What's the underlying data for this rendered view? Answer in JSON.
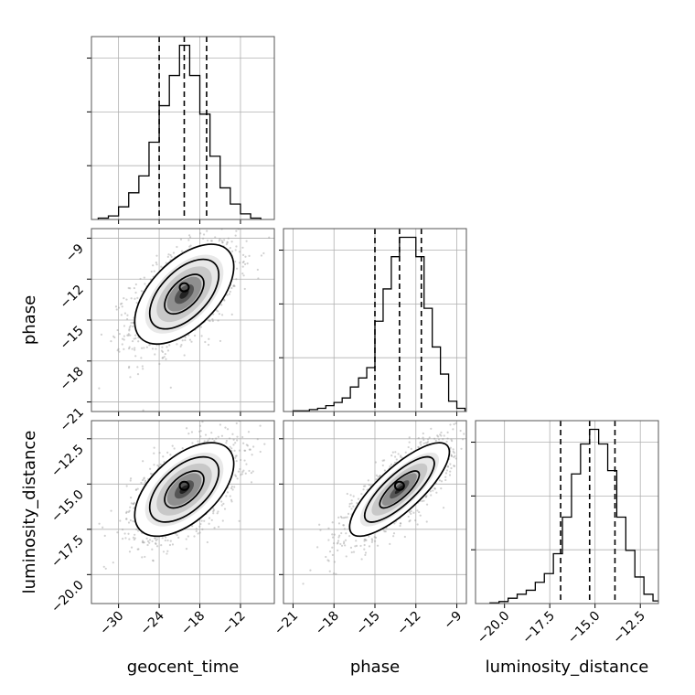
{
  "chart_data": {
    "type": "corner",
    "parameters": [
      "geocent_time",
      "phase",
      "luminosity_distance"
    ],
    "grid": true,
    "axes_ranges": {
      "geocent_time": [
        -34,
        -7
      ],
      "phase": [
        -21.7,
        -8.3
      ],
      "luminosity_distance": [
        -21.6,
        -11.5
      ]
    },
    "ticks": {
      "geocent_time": {
        "values": [
          -30,
          -24,
          -18,
          -12
        ],
        "labels": [
          "−30",
          "−24",
          "−18",
          "−12"
        ]
      },
      "phase": {
        "values": [
          -21,
          -18,
          -15,
          -12,
          -9
        ],
        "labels": [
          "−21",
          "−18",
          "−15",
          "−12",
          "−9"
        ]
      },
      "luminosity_distance": {
        "values": [
          -20.0,
          -17.5,
          -15.0,
          -12.5
        ],
        "labels": [
          "−20.0",
          "−17.5",
          "−15.0",
          "−12.5"
        ]
      }
    },
    "marginals": [
      {
        "parameter": "geocent_time",
        "quantiles": [
          -24.0,
          -20.3,
          -17.0
        ],
        "bins": [
          -33,
          -31.5,
          -30,
          -28.5,
          -27,
          -25.5,
          -24,
          -22.5,
          -21,
          -19.5,
          -18,
          -16.5,
          -15,
          -13.5,
          -12,
          -10.5,
          -9
        ],
        "counts": [
          2,
          5,
          18,
          38,
          62,
          110,
          162,
          205,
          248,
          205,
          150,
          90,
          45,
          22,
          8,
          2
        ]
      },
      {
        "parameter": "phase",
        "quantiles": [
          -15.0,
          -13.2,
          -11.6
        ],
        "bins": [
          -21,
          -20.4,
          -19.8,
          -19.2,
          -18.6,
          -18.0,
          -17.4,
          -16.8,
          -16.2,
          -15.6,
          -15.0,
          -14.4,
          -13.8,
          -13.2,
          -12.6,
          -12.0,
          -11.4,
          -10.8,
          -10.2,
          -9.6,
          -9.0,
          -8.4
        ],
        "counts": [
          1,
          1,
          3,
          5,
          9,
          14,
          21,
          38,
          52,
          68,
          140,
          190,
          240,
          270,
          270,
          240,
          160,
          100,
          58,
          16,
          5
        ]
      },
      {
        "parameter": "luminosity_distance",
        "quantiles": [
          -16.9,
          -15.3,
          -13.9
        ],
        "bins": [
          -20.8,
          -20.3,
          -19.8,
          -19.3,
          -18.8,
          -18.3,
          -17.8,
          -17.3,
          -16.8,
          -16.3,
          -15.8,
          -15.3,
          -14.8,
          -14.3,
          -13.8,
          -13.3,
          -12.8,
          -12.3,
          -11.8,
          -11.3
        ],
        "counts": [
          1,
          3,
          8,
          14,
          20,
          32,
          45,
          75,
          130,
          195,
          240,
          262,
          240,
          200,
          130,
          80,
          40,
          14,
          4
        ]
      }
    ],
    "pairs": [
      {
        "x": "geocent_time",
        "y": "phase",
        "center": [
          -20.3,
          -13.1
        ],
        "sd": [
          3.4,
          1.7
        ],
        "rho": 0.55,
        "mode": [
          -20.3,
          -12.6
        ]
      },
      {
        "x": "geocent_time",
        "y": "luminosity_distance",
        "center": [
          -20.3,
          -15.3
        ],
        "sd": [
          3.4,
          1.2
        ],
        "rho": 0.55,
        "mode": [
          -20.3,
          -15.1
        ]
      },
      {
        "x": "phase",
        "y": "luminosity_distance",
        "center": [
          -13.2,
          -15.3
        ],
        "sd": [
          1.7,
          1.2
        ],
        "rho": 0.8,
        "mode": [
          -13.2,
          -15.1
        ]
      }
    ],
    "xlabels": [
      "geocent_time",
      "phase",
      "luminosity_distance"
    ],
    "ylabels": [
      "",
      "phase",
      "luminosity_distance"
    ]
  }
}
